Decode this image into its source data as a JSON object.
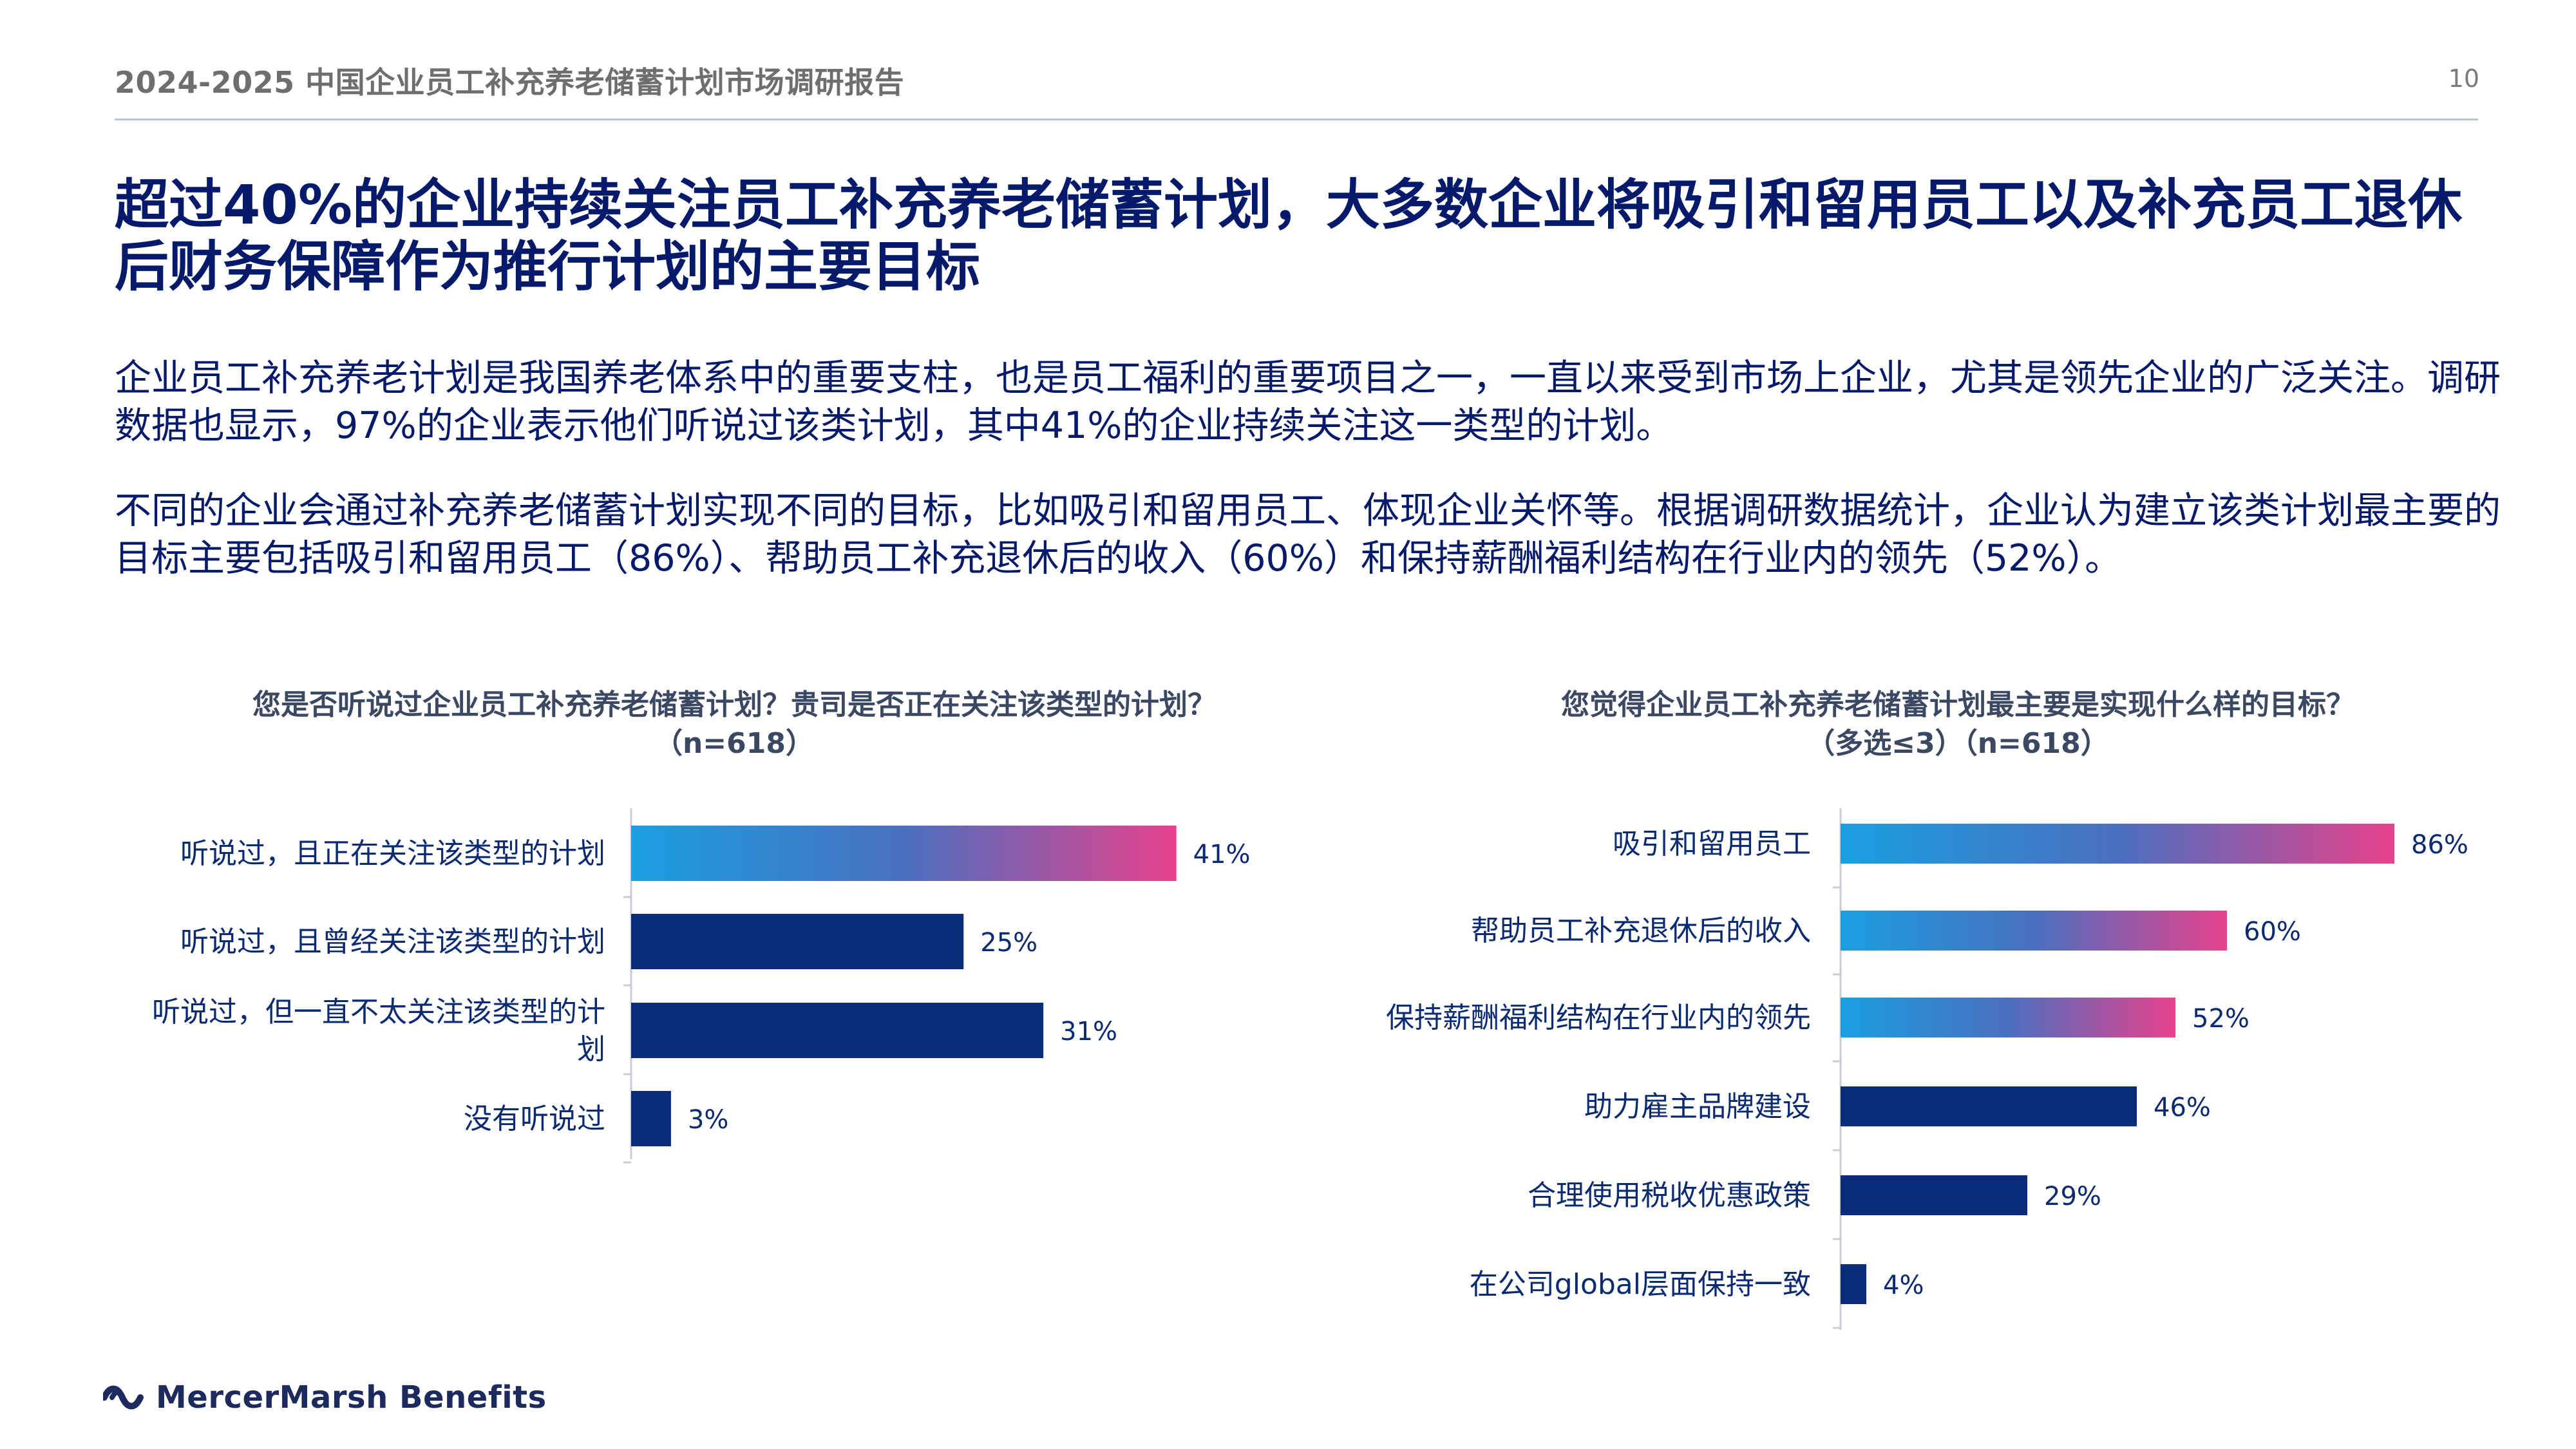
{
  "header": {
    "title": "2024-2025 中国企业员工补充养老储蓄计划市场调研报告",
    "page_number": "10"
  },
  "headline": "超过40%的企业持续关注员工补充养老储蓄计划，大多数企业将吸引和留用员工以及补充员工退休后财务保障作为推行计划的主要目标",
  "paragraphs": [
    "企业员工补充养老计划是我国养老体系中的重要支柱，也是员工福利的重要项目之一，一直以来受到市场上企业，尤其是领先企业的广泛关注。调研数据也显示，97%的企业表示他们听说过该类计划，其中41%的企业持续关注这一类型的计划。",
    "不同的企业会通过补充养老储蓄计划实现不同的目标，比如吸引和留用员工、体现企业关怀等。根据调研数据统计，企业认为建立该类计划最主要的目标主要包括吸引和留用员工（86%）、帮助员工补充退休后的收入（60%）和保持薪酬福利结构在行业内的领先（52%）。"
  ],
  "colors": {
    "navy": "#0b2c7a",
    "gradient_start": "#1a9fe0",
    "gradient_mid": "#4a6fc0",
    "gradient_end": "#e8428c"
  },
  "chart_data": [
    {
      "type": "bar",
      "orientation": "horizontal",
      "title": "您是否听说过企业员工补充养老储蓄计划？贵司是否正在关注该类型的计划？",
      "subtitle": "（n=618）",
      "categories": [
        "听说过，且正在关注该类型的计划",
        "听说过，且曾经关注该类型的计划",
        "听说过，但一直不太关注该类型的计划",
        "没有听说过"
      ],
      "values": [
        41,
        25,
        31,
        3
      ],
      "value_labels": [
        "41%",
        "25%",
        "31%",
        "3%"
      ],
      "highlight": [
        true,
        false,
        false,
        false
      ],
      "xlim": [
        0,
        100
      ],
      "unit": "%"
    },
    {
      "type": "bar",
      "orientation": "horizontal",
      "title": "您觉得企业员工补充养老储蓄计划最主要是实现什么样的目标？",
      "subtitle": "（多选≤3）（n=618）",
      "categories": [
        "吸引和留用员工",
        "帮助员工补充退休后的收入",
        "保持薪酬福利结构在行业内的领先",
        "助力雇主品牌建设",
        "合理使用税收优惠政策",
        "在公司global层面保持一致"
      ],
      "values": [
        86,
        60,
        52,
        46,
        29,
        4
      ],
      "value_labels": [
        "86%",
        "60%",
        "52%",
        "46%",
        "29%",
        "4%"
      ],
      "highlight": [
        true,
        true,
        true,
        false,
        false,
        false
      ],
      "xlim": [
        0,
        100
      ],
      "unit": "%"
    }
  ],
  "footer": {
    "brand": "MercerMarsh Benefits",
    "logo_icon": "mercer-wave-icon"
  }
}
